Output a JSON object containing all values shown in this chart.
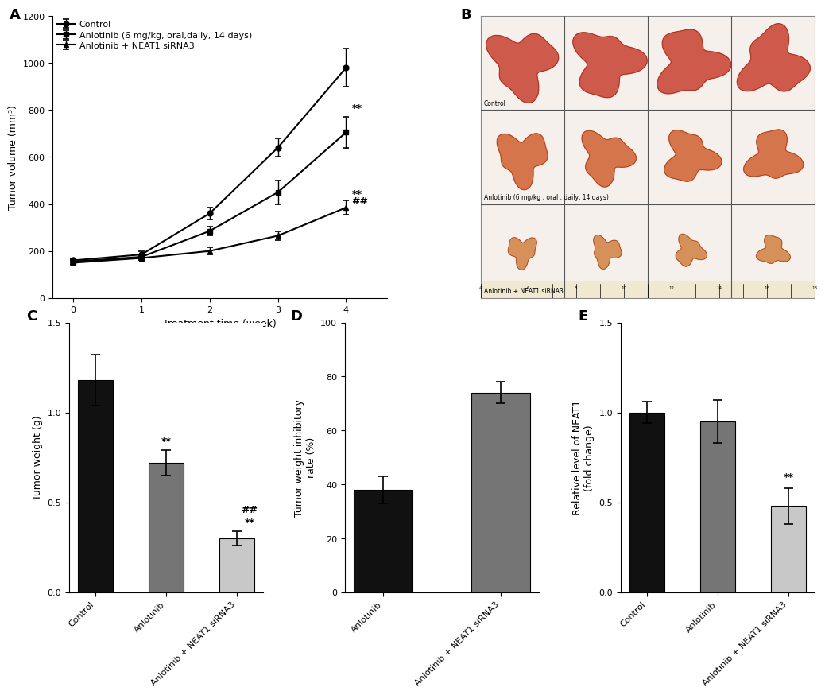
{
  "panel_A": {
    "x": [
      0,
      1,
      2,
      3,
      4
    ],
    "control_y": [
      160,
      185,
      360,
      640,
      980
    ],
    "control_err": [
      10,
      15,
      25,
      40,
      80
    ],
    "anlotinib_y": [
      155,
      175,
      285,
      450,
      705
    ],
    "anlotinib_err": [
      10,
      12,
      20,
      50,
      65
    ],
    "combo_y": [
      150,
      170,
      200,
      265,
      385
    ],
    "combo_err": [
      8,
      10,
      15,
      20,
      30
    ],
    "xlabel": "Treatment time (week)",
    "ylabel": "Tumor volume (mm³)",
    "legend_control": "Control",
    "legend_anlotinib": "Anlotinib (6 mg/kg, oral,daily, 14 days)",
    "legend_combo": "Anlotinib + NEAT1 siRNA3",
    "ylim": [
      0,
      1200
    ],
    "yticks": [
      0,
      200,
      400,
      600,
      800,
      1000,
      1200
    ]
  },
  "panel_C": {
    "categories": [
      "Control",
      "Anlotinib",
      "Anlotinib + NEAT1 siRNA3"
    ],
    "values": [
      1.18,
      0.72,
      0.3
    ],
    "errors": [
      0.14,
      0.07,
      0.04
    ],
    "colors": [
      "#111111",
      "#757575",
      "#c8c8c8"
    ],
    "ylabel": "Tumor weight (g)",
    "ylim": [
      0,
      1.5
    ],
    "yticks": [
      0.0,
      0.5,
      1.0,
      1.5
    ]
  },
  "panel_D": {
    "categories": [
      "Anlotinib",
      "Anlotinib + NEAT1 siRNA3"
    ],
    "values": [
      38,
      74
    ],
    "errors": [
      5,
      4
    ],
    "colors": [
      "#111111",
      "#757575"
    ],
    "ylabel": "Tumor weight inhibitory\nrate (%)",
    "ylim": [
      0,
      100
    ],
    "yticks": [
      0,
      20,
      40,
      60,
      80,
      100
    ]
  },
  "panel_E": {
    "categories": [
      "Control",
      "Anlotinib",
      "Anlotinib + NEAT1 siRNA3"
    ],
    "values": [
      1.0,
      0.95,
      0.48
    ],
    "errors": [
      0.06,
      0.12,
      0.1
    ],
    "colors": [
      "#111111",
      "#757575",
      "#c8c8c8"
    ],
    "ylabel": "Relative level of NEAT1\n(fold change)",
    "ylim": [
      0,
      1.5
    ],
    "yticks": [
      0.0,
      0.5,
      1.0,
      1.5
    ]
  },
  "bg": "#ffffff",
  "fs_tick": 8,
  "fs_label": 9,
  "fs_panel": 13,
  "fs_legend": 8,
  "bar_width": 0.5
}
